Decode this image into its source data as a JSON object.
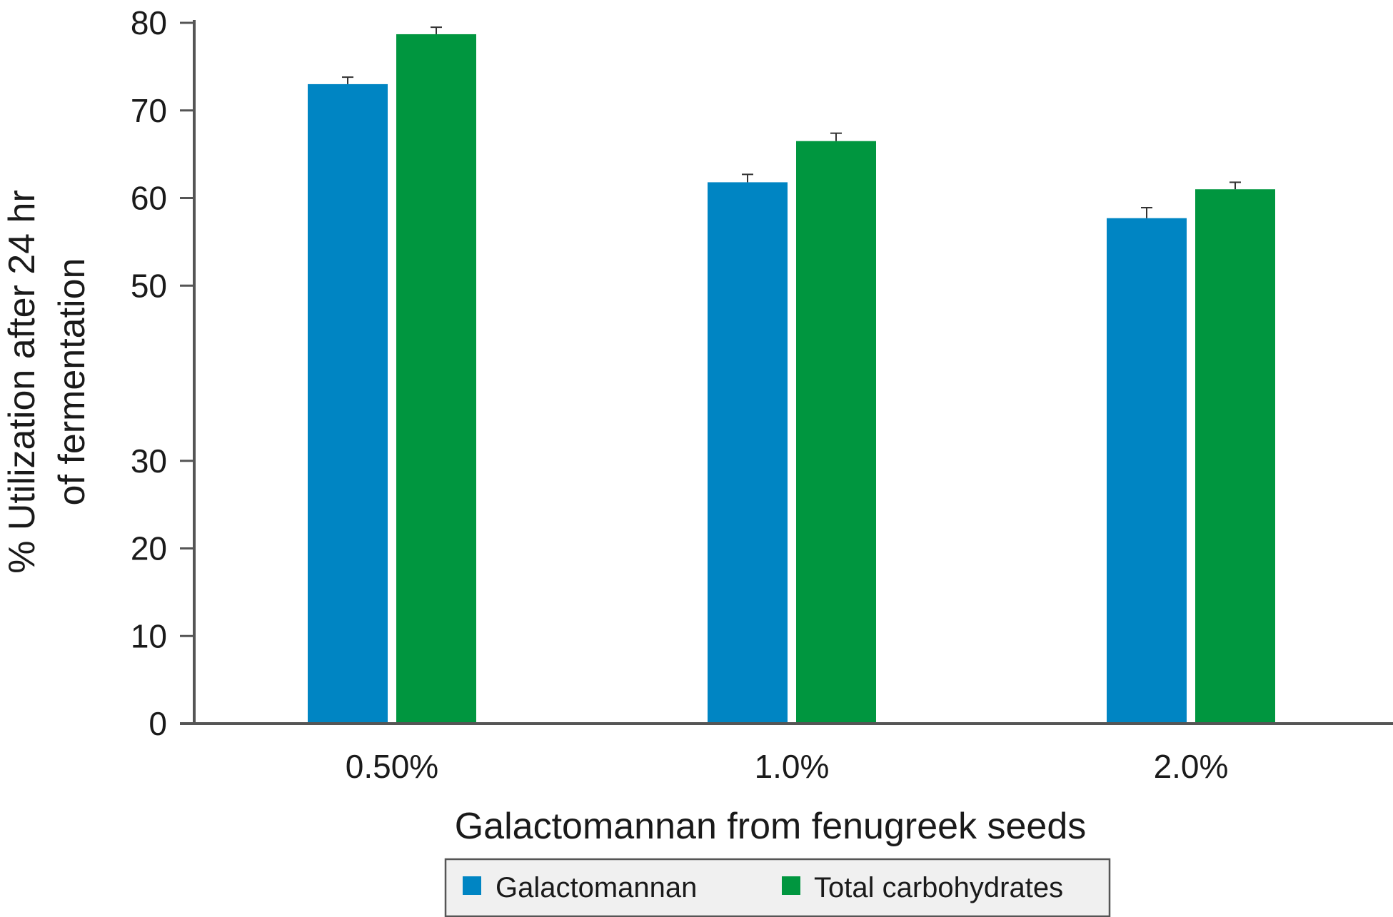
{
  "chart_data": {
    "type": "bar",
    "categories": [
      "0.50%",
      "1.0%",
      "2.0%"
    ],
    "series": [
      {
        "name": "Galactomannan",
        "color": "#0085c3",
        "values": [
          73.0,
          61.8,
          57.7
        ],
        "errors": [
          0.8,
          0.9,
          1.2
        ]
      },
      {
        "name": "Total carbohydrates",
        "color": "#00963f",
        "values": [
          78.7,
          66.5,
          61.0
        ],
        "errors": [
          0.8,
          0.9,
          0.8
        ]
      }
    ],
    "xlabel": "Galactomannan from fenugreek seeds",
    "ylabel_lines": [
      "% Utilization after 24 hr",
      "of fermentation"
    ],
    "yticks": [
      0,
      10,
      20,
      30,
      50,
      60,
      70,
      80
    ],
    "ylim": [
      0,
      80
    ],
    "grid": false,
    "legend_position": "bottom-center",
    "axis_color": "#555555",
    "legend_background": "#f0f0f0",
    "legend_border": "#555555"
  }
}
